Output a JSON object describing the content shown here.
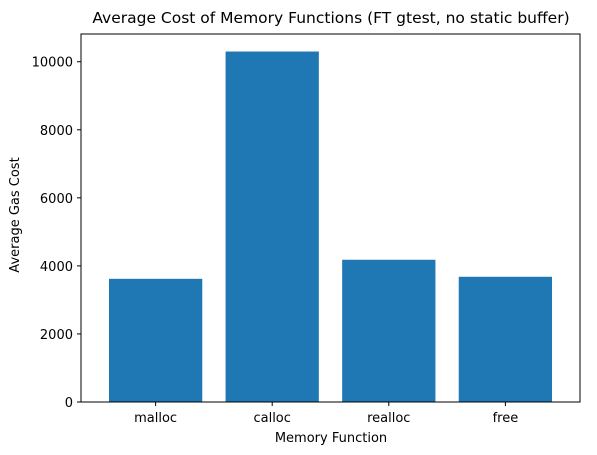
{
  "chart_data": {
    "type": "bar",
    "title": "Average Cost of Memory Functions (FT gtest, no static buffer)",
    "xlabel": "Memory Function",
    "ylabel": "Average Gas Cost",
    "categories": [
      "malloc",
      "calloc",
      "realloc",
      "free"
    ],
    "values": [
      3620,
      10300,
      4180,
      3680
    ],
    "ylim": [
      0,
      10815
    ],
    "yticks": [
      0,
      2000,
      4000,
      6000,
      8000,
      10000
    ],
    "grid": false,
    "legend": "none",
    "bar_color": "#1f77b4"
  }
}
